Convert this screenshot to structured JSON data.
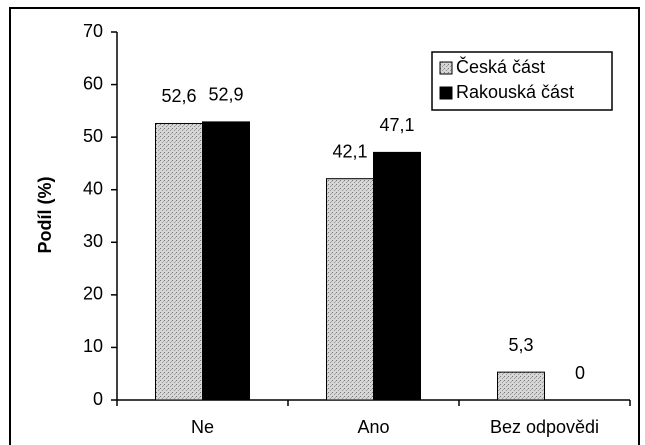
{
  "chart_data": {
    "type": "bar",
    "ylabel": "Podíl (%)",
    "categories": [
      "Ne",
      "Ano",
      "Bez odpovědi"
    ],
    "series": [
      {
        "name": "Česká část",
        "color": "#c4c4c4",
        "values": [
          52.6,
          42.1,
          5.3
        ],
        "value_labels": [
          "52,6",
          "42,1",
          "5,3"
        ]
      },
      {
        "name": "Rakouská část",
        "color": "#000000",
        "values": [
          52.9,
          47.1,
          0
        ],
        "value_labels": [
          "52,9",
          "47,1",
          "0"
        ]
      }
    ],
    "ylim": [
      0,
      70
    ],
    "yticks": [
      0,
      10,
      20,
      30,
      40,
      50,
      60,
      70
    ],
    "legend": "upper right",
    "grid": false
  }
}
